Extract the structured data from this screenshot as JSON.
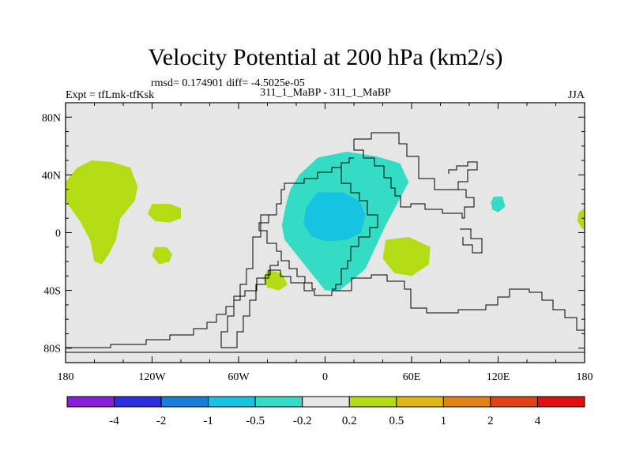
{
  "chart_data": {
    "type": "contour-map",
    "title": "Velocity Potential at 200 hPa (km2/s)",
    "stats_line": "rmsd= 0.174901 diff= -4.5025e-05",
    "left_label": "Expt = tfLmk-tfKsk",
    "center_label": "311_1_MaBP - 311_1_MaBP",
    "season_label": "JJA",
    "x_ticks": [
      "180",
      "120W",
      "60W",
      "0",
      "60E",
      "120E",
      "180"
    ],
    "x_tick_values": [
      -180,
      -120,
      -60,
      0,
      60,
      120,
      180
    ],
    "y_ticks": [
      "80N",
      "40N",
      "0",
      "40S",
      "80S"
    ],
    "y_tick_values": [
      80,
      40,
      0,
      -40,
      -80
    ],
    "xlim": [
      -180,
      180
    ],
    "ylim": [
      -90,
      90
    ],
    "colorbar": {
      "labels": [
        "-4",
        "-2",
        "-1",
        "-0.5",
        "-0.2",
        "0.2",
        "0.5",
        "1",
        "2",
        "4"
      ],
      "colors": [
        "#8a1ed8",
        "#2c2ce0",
        "#1480d8",
        "#14c4e0",
        "#34dcc4",
        "#e6e6e6",
        "#b4dc14",
        "#e0b814",
        "#e08414",
        "#e04414",
        "#e01010"
      ]
    },
    "background_color": "#e6e6e6",
    "features": [
      {
        "name": "positive-anomaly-north-pacific",
        "level": "0.2–0.5",
        "color": "#b4dc14",
        "outline": [
          [
            -148,
            49
          ],
          [
            -135,
            45
          ],
          [
            -130,
            32
          ],
          [
            -132,
            22
          ],
          [
            -142,
            10
          ],
          [
            -145,
            -5
          ],
          [
            -150,
            -15
          ],
          [
            -155,
            -22
          ],
          [
            -160,
            -20
          ],
          [
            -163,
            -5
          ],
          [
            -170,
            8
          ],
          [
            -180,
            22
          ],
          [
            -180,
            35
          ],
          [
            -172,
            45
          ],
          [
            -162,
            50
          ]
        ]
      },
      {
        "name": "positive-anomaly-central-pacific",
        "level": "0.2–0.5",
        "color": "#b4dc14",
        "outline": [
          [
            -120,
            20
          ],
          [
            -108,
            20
          ],
          [
            -100,
            17
          ],
          [
            -100,
            10
          ],
          [
            -108,
            7
          ],
          [
            -118,
            8
          ],
          [
            -123,
            13
          ]
        ]
      },
      {
        "name": "positive-anomaly-east-pacific",
        "level": "0.2–0.5",
        "color": "#b4dc14",
        "outline": [
          [
            -118,
            -10
          ],
          [
            -110,
            -10
          ],
          [
            -106,
            -15
          ],
          [
            -108,
            -20
          ],
          [
            -115,
            -22
          ],
          [
            -120,
            -16
          ]
        ]
      },
      {
        "name": "positive-anomaly-south-atlantic",
        "level": "0.2–0.5",
        "color": "#b4dc14",
        "outline": [
          [
            -40,
            -26
          ],
          [
            -30,
            -28
          ],
          [
            -26,
            -36
          ],
          [
            -32,
            -40
          ],
          [
            -40,
            -38
          ],
          [
            -43,
            -32
          ]
        ]
      },
      {
        "name": "positive-anomaly-indian-ocean",
        "level": "0.2–0.5",
        "color": "#b4dc14",
        "outline": [
          [
            42,
            -5
          ],
          [
            58,
            -3
          ],
          [
            73,
            -10
          ],
          [
            72,
            -22
          ],
          [
            60,
            -30
          ],
          [
            48,
            -28
          ],
          [
            40,
            -18
          ]
        ]
      },
      {
        "name": "positive-anomaly-dateline-edge",
        "level": "0.2–0.5",
        "color": "#b4dc14",
        "outline": [
          [
            180,
            17
          ],
          [
            176,
            14
          ],
          [
            175,
            8
          ],
          [
            178,
            3
          ],
          [
            180,
            2
          ]
        ]
      },
      {
        "name": "negative-anomaly-africa-outer",
        "level": "-0.5–-0.2",
        "color": "#34dcc4",
        "outline": [
          [
            -18,
            40
          ],
          [
            -5,
            52
          ],
          [
            15,
            56
          ],
          [
            35,
            53
          ],
          [
            52,
            48
          ],
          [
            58,
            35
          ],
          [
            50,
            20
          ],
          [
            42,
            5
          ],
          [
            35,
            -10
          ],
          [
            28,
            -25
          ],
          [
            20,
            -32
          ],
          [
            10,
            -40
          ],
          [
            0,
            -40
          ],
          [
            -8,
            -30
          ],
          [
            -20,
            -15
          ],
          [
            -28,
            -5
          ],
          [
            -30,
            5
          ],
          [
            -27,
            20
          ],
          [
            -24,
            30
          ]
        ]
      },
      {
        "name": "negative-anomaly-western-pacific",
        "level": "-0.5–-0.2",
        "color": "#34dcc4",
        "outline": [
          [
            117,
            25
          ],
          [
            123,
            25
          ],
          [
            125,
            18
          ],
          [
            120,
            14
          ],
          [
            116,
            16
          ],
          [
            115,
            21
          ]
        ]
      },
      {
        "name": "negative-anomaly-africa-core",
        "level": "-1–-0.5",
        "color": "#14c4e0",
        "outline": [
          [
            -5,
            28
          ],
          [
            12,
            28
          ],
          [
            24,
            22
          ],
          [
            28,
            12
          ],
          [
            25,
            0
          ],
          [
            15,
            -5
          ],
          [
            0,
            -6
          ],
          [
            -10,
            -2
          ],
          [
            -15,
            6
          ],
          [
            -13,
            18
          ]
        ]
      }
    ]
  }
}
